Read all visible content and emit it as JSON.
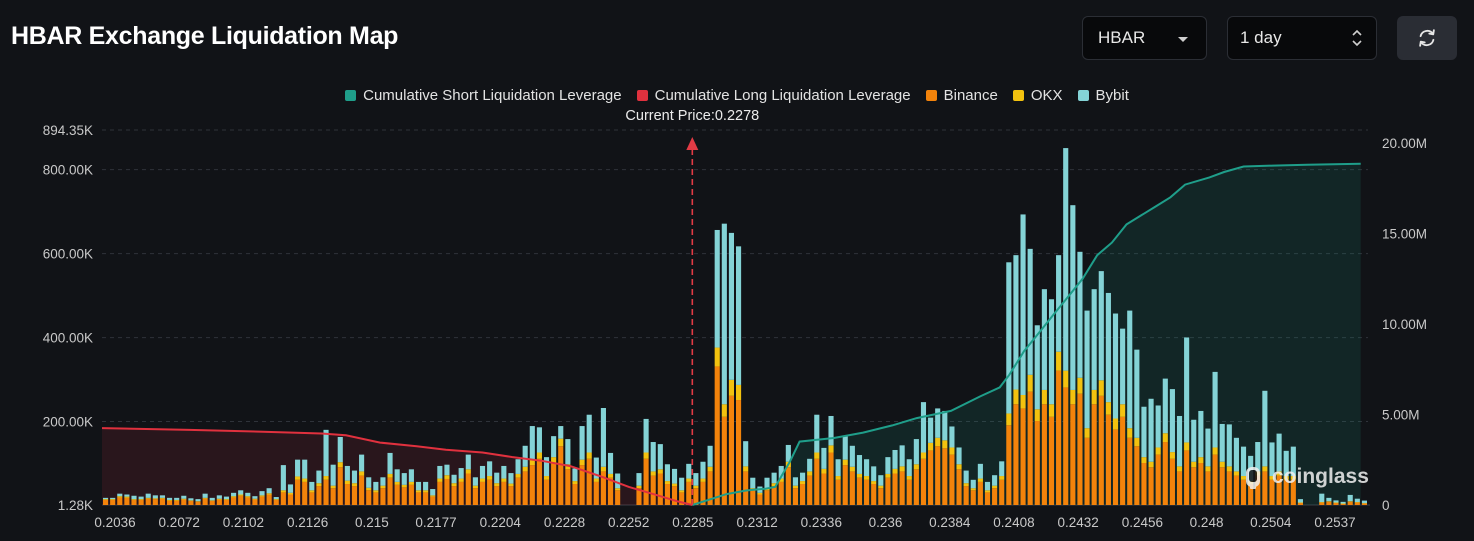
{
  "header": {
    "title": "HBAR Exchange Liquidation Map"
  },
  "controls": {
    "coin": "HBAR",
    "range": "1 day"
  },
  "colors": {
    "short": "#1f9e8a",
    "long": "#e0313e",
    "binance": "#f3830b",
    "okx": "#f3c20f",
    "bybit": "#84d3d6",
    "grid": "#2f333a",
    "arrow": "#e33b45"
  },
  "chart_data": {
    "type": "bar",
    "title": "HBAR Exchange Liquidation Map",
    "current_price_label": "Current Price:0.2278",
    "current_price": 0.2278,
    "legend": [
      {
        "key": "short",
        "label": "Cumulative Short Liquidation Leverage"
      },
      {
        "key": "long",
        "label": "Cumulative Long Liquidation Leverage"
      },
      {
        "key": "binance",
        "label": "Binance"
      },
      {
        "key": "okx",
        "label": "OKX"
      },
      {
        "key": "bybit",
        "label": "Bybit"
      }
    ],
    "x_range": [
      0.2036,
      0.2555
    ],
    "x_ticks": [
      "0.2036",
      "0.2072",
      "0.2102",
      "0.2126",
      "0.215",
      "0.2177",
      "0.2204",
      "0.2228",
      "0.2252",
      "0.2285",
      "0.2312",
      "0.2336",
      "0.236",
      "0.2384",
      "0.2408",
      "0.2432",
      "0.2456",
      "0.248",
      "0.2504",
      "0.2537"
    ],
    "y_left": {
      "range": [
        1280,
        894350
      ],
      "ticks": [
        {
          "value": 894350,
          "label": "894.35K"
        },
        {
          "value": 800000,
          "label": "800.00K"
        },
        {
          "value": 600000,
          "label": "600.00K"
        },
        {
          "value": 400000,
          "label": "400.00K"
        },
        {
          "value": 200000,
          "label": "200.00K"
        },
        {
          "value": 1280,
          "label": "1.28K"
        }
      ]
    },
    "y_right": {
      "range": [
        0,
        20000000
      ],
      "ticks": [
        {
          "value": 20000000,
          "label": "20.00M"
        },
        {
          "value": 15000000,
          "label": "15.00M"
        },
        {
          "value": 10000000,
          "label": "10.00M"
        },
        {
          "value": 5000000,
          "label": "5.00M"
        },
        {
          "value": 0,
          "label": "0"
        }
      ]
    },
    "series": [
      {
        "name": "Binance",
        "key": "binance",
        "values": [
          12000,
          12000,
          18000,
          17000,
          12000,
          12000,
          15000,
          14000,
          15000,
          10000,
          10000,
          13000,
          10000,
          8000,
          15000,
          10000,
          13000,
          12000,
          18000,
          22000,
          18000,
          13000,
          20000,
          25000,
          12000,
          30000,
          25000,
          60000,
          55000,
          30000,
          45000,
          60000,
          40000,
          90000,
          50000,
          45000,
          70000,
          35000,
          30000,
          40000,
          65000,
          48000,
          42000,
          48000,
          30000,
          30000,
          20000,
          55000,
          62000,
          45000,
          55000,
          75000,
          40000,
          55000,
          60000,
          45000,
          55000,
          45000,
          65000,
          80000,
          95000,
          110000,
          60000,
          100000,
          140000,
          85000,
          50000,
          95000,
          110000,
          55000,
          80000,
          65000,
          35000,
          0,
          0,
          40000,
          110000,
          70000,
          75000,
          50000,
          45000,
          30000,
          55000,
          40000,
          55000,
          80000,
          330000,
          210000,
          260000,
          250000,
          80000,
          35000,
          25000,
          35000,
          45000,
          55000,
          90000,
          40000,
          50000,
          70000,
          110000,
          75000,
          125000,
          60000,
          95000,
          80000,
          65000,
          60000,
          50000,
          40000,
          65000,
          75000,
          80000,
          60000,
          85000,
          110000,
          130000,
          140000,
          135000,
          120000,
          85000,
          45000,
          35000,
          55000,
          30000,
          40000,
          60000,
          190000,
          240000,
          230000,
          270000,
          200000,
          240000,
          210000,
          320000,
          280000,
          240000,
          265000,
          160000,
          240000,
          260000,
          215000,
          180000,
          210000,
          160000,
          140000,
          100000,
          90000,
          120000,
          150000,
          110000,
          80000,
          130000,
          90000,
          100000,
          80000,
          120000,
          90000,
          80000,
          70000,
          60000,
          50000,
          70000,
          80000,
          60000,
          70000,
          60000,
          60000,
          5000,
          0,
          0,
          6000,
          8000,
          5000,
          3000,
          8000,
          6000,
          4000
        ],
        "okx": [
          2000,
          2000,
          3000,
          3000,
          2000,
          2000,
          2000,
          2000,
          2000,
          2000,
          2000,
          2000,
          1000,
          1000,
          2000,
          1000,
          2000,
          2000,
          3000,
          3000,
          3000,
          2000,
          3000,
          3000,
          2000,
          5000,
          4000,
          8000,
          8000,
          5000,
          7000,
          9000,
          6000,
          12000,
          8000,
          7000,
          10000,
          6000,
          5000,
          6000,
          9000,
          7000,
          6000,
          7000,
          5000,
          5000,
          3000,
          8000,
          9000,
          7000,
          8000,
          10000,
          6000,
          8000,
          9000,
          7000,
          8000,
          6000,
          9000,
          11000,
          13000,
          15000,
          9000,
          14000,
          18000,
          12000,
          7000,
          13000,
          15000,
          8000,
          11000,
          9000,
          5000,
          0,
          0,
          6000,
          15000,
          10000,
          10000,
          7000,
          6000,
          5000,
          8000,
          6000,
          8000,
          11000,
          45000,
          30000,
          38000,
          36000,
          12000,
          5000,
          4000,
          5000,
          7000,
          8000,
          13000,
          6000,
          7000,
          10000,
          15000,
          11000,
          17000,
          9000,
          13000,
          11000,
          9000,
          9000,
          7000,
          6000,
          9000,
          11000,
          12000,
          9000,
          12000,
          15000,
          18000,
          20000,
          19000,
          17000,
          12000,
          7000,
          5000,
          8000,
          5000,
          6000,
          9000,
          28000,
          35000,
          32000,
          40000,
          28000,
          34000,
          30000,
          45000,
          40000,
          34000,
          38000,
          23000,
          34000,
          37000,
          30000,
          26000,
          30000,
          23000,
          20000,
          14000,
          13000,
          17000,
          21000,
          16000,
          12000,
          19000,
          13000,
          14000,
          12000,
          17000,
          13000,
          12000,
          10000,
          9000,
          7000,
          10000,
          12000,
          9000,
          10000,
          9000,
          9000,
          1000,
          0,
          0,
          1000,
          1000,
          1000,
          500,
          1000,
          1000,
          500
        ]
      },
      {
        "name": "OKX",
        "key": "okx"
      },
      {
        "name": "Bybit",
        "key": "bybit",
        "values": [
          3000,
          3000,
          6000,
          5000,
          8000,
          6000,
          10000,
          7000,
          6000,
          5000,
          5000,
          7000,
          5000,
          5000,
          10000,
          6000,
          8000,
          6000,
          8000,
          10000,
          8000,
          6000,
          10000,
          12000,
          5000,
          60000,
          20000,
          40000,
          45000,
          20000,
          30000,
          110000,
          50000,
          60000,
          35000,
          30000,
          40000,
          25000,
          20000,
          20000,
          50000,
          30000,
          28000,
          30000,
          20000,
          20000,
          15000,
          30000,
          25000,
          20000,
          25000,
          35000,
          20000,
          30000,
          35000,
          25000,
          30000,
          25000,
          35000,
          50000,
          80000,
          60000,
          45000,
          50000,
          30000,
          60000,
          30000,
          80000,
          90000,
          50000,
          140000,
          50000,
          35000,
          0,
          0,
          30000,
          80000,
          70000,
          60000,
          40000,
          35000,
          30000,
          35000,
          30000,
          40000,
          50000,
          280000,
          430000,
          350000,
          330000,
          60000,
          25000,
          15000,
          25000,
          25000,
          30000,
          40000,
          20000,
          20000,
          30000,
          90000,
          50000,
          70000,
          40000,
          55000,
          50000,
          45000,
          40000,
          35000,
          25000,
          40000,
          45000,
          50000,
          40000,
          60000,
          120000,
          60000,
          70000,
          70000,
          50000,
          40000,
          30000,
          20000,
          35000,
          20000,
          25000,
          35000,
          360000,
          320000,
          430000,
          300000,
          200000,
          240000,
          250000,
          230000,
          530000,
          440000,
          300000,
          280000,
          240000,
          260000,
          260000,
          250000,
          180000,
          280000,
          210000,
          120000,
          150000,
          100000,
          130000,
          150000,
          120000,
          250000,
          100000,
          110000,
          90000,
          180000,
          90000,
          100000,
          80000,
          70000,
          60000,
          70000,
          180000,
          80000,
          90000,
          60000,
          70000,
          8000,
          0,
          0,
          20000,
          8000,
          5000,
          4000,
          15000,
          8000,
          6000
        ]
      }
    ],
    "cumulative_short": [
      [
        0.2278,
        0
      ],
      [
        0.2285,
        300000
      ],
      [
        0.2292,
        600000
      ],
      [
        0.23,
        800000
      ],
      [
        0.2308,
        900000
      ],
      [
        0.2312,
        1000000
      ],
      [
        0.2318,
        2400000
      ],
      [
        0.2322,
        3500000
      ],
      [
        0.2336,
        3700000
      ],
      [
        0.2348,
        4000000
      ],
      [
        0.236,
        4400000
      ],
      [
        0.237,
        4800000
      ],
      [
        0.2384,
        5200000
      ],
      [
        0.2396,
        6000000
      ],
      [
        0.2404,
        6500000
      ],
      [
        0.2408,
        7200000
      ],
      [
        0.2414,
        8500000
      ],
      [
        0.242,
        9500000
      ],
      [
        0.2426,
        10500000
      ],
      [
        0.2432,
        11500000
      ],
      [
        0.2438,
        12500000
      ],
      [
        0.2444,
        13800000
      ],
      [
        0.245,
        14500000
      ],
      [
        0.2456,
        15500000
      ],
      [
        0.2462,
        16000000
      ],
      [
        0.2468,
        16500000
      ],
      [
        0.2474,
        17000000
      ],
      [
        0.248,
        17700000
      ],
      [
        0.249,
        18100000
      ],
      [
        0.2496,
        18400000
      ],
      [
        0.2504,
        18700000
      ],
      [
        0.2516,
        18750000
      ],
      [
        0.253,
        18800000
      ],
      [
        0.2552,
        18850000
      ]
    ],
    "cumulative_long": [
      [
        0.2036,
        4250000
      ],
      [
        0.2072,
        4150000
      ],
      [
        0.2102,
        4050000
      ],
      [
        0.2126,
        3950000
      ],
      [
        0.2136,
        3850000
      ],
      [
        0.215,
        3450000
      ],
      [
        0.2165,
        3250000
      ],
      [
        0.2177,
        3050000
      ],
      [
        0.2192,
        2900000
      ],
      [
        0.2204,
        2650000
      ],
      [
        0.2216,
        2450000
      ],
      [
        0.2228,
        2150000
      ],
      [
        0.224,
        1600000
      ],
      [
        0.2252,
        1000000
      ],
      [
        0.2262,
        600000
      ],
      [
        0.2272,
        200000
      ],
      [
        0.2278,
        0
      ]
    ]
  }
}
